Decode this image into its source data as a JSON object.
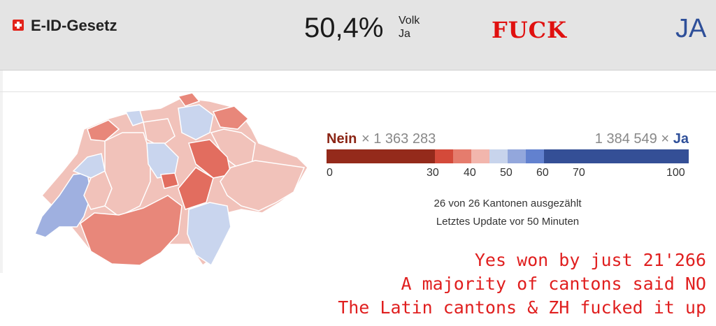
{
  "header": {
    "title": "E-ID-Gesetz",
    "percent": "50,4%",
    "label_top": "Volk",
    "label_bottom": "Ja",
    "exclamation": "FUCK",
    "result": "JA"
  },
  "legend": {
    "nein_label": "Nein",
    "nein_count": "× 1 363 283",
    "ja_count": "1 384 549 ×",
    "ja_label": "Ja",
    "ticks": [
      "0",
      "30",
      "40",
      "50",
      "60",
      "70",
      "100"
    ],
    "colors": [
      "#942a1b",
      "#d44a3a",
      "#e57c6d",
      "#f2b6ad",
      "#c8d4ec",
      "#93a7dc",
      "#6281cf",
      "#344f96"
    ]
  },
  "status": {
    "counted": "26 von 26 Kantonen ausgezählt",
    "updated": "Letztes Update vor 50 Minuten"
  },
  "annotation": {
    "line1": "Yes won by just 21'266",
    "line2": "A majority of cantons said NO",
    "line3": "The Latin cantons & ZH fucked it up"
  },
  "map_colors": {
    "light_nein": "#f1c2ba",
    "mid_nein": "#e8877a",
    "strong_nein": "#e26d5f",
    "light_ja": "#c9d5ee",
    "mid_ja": "#9fb0e0"
  }
}
